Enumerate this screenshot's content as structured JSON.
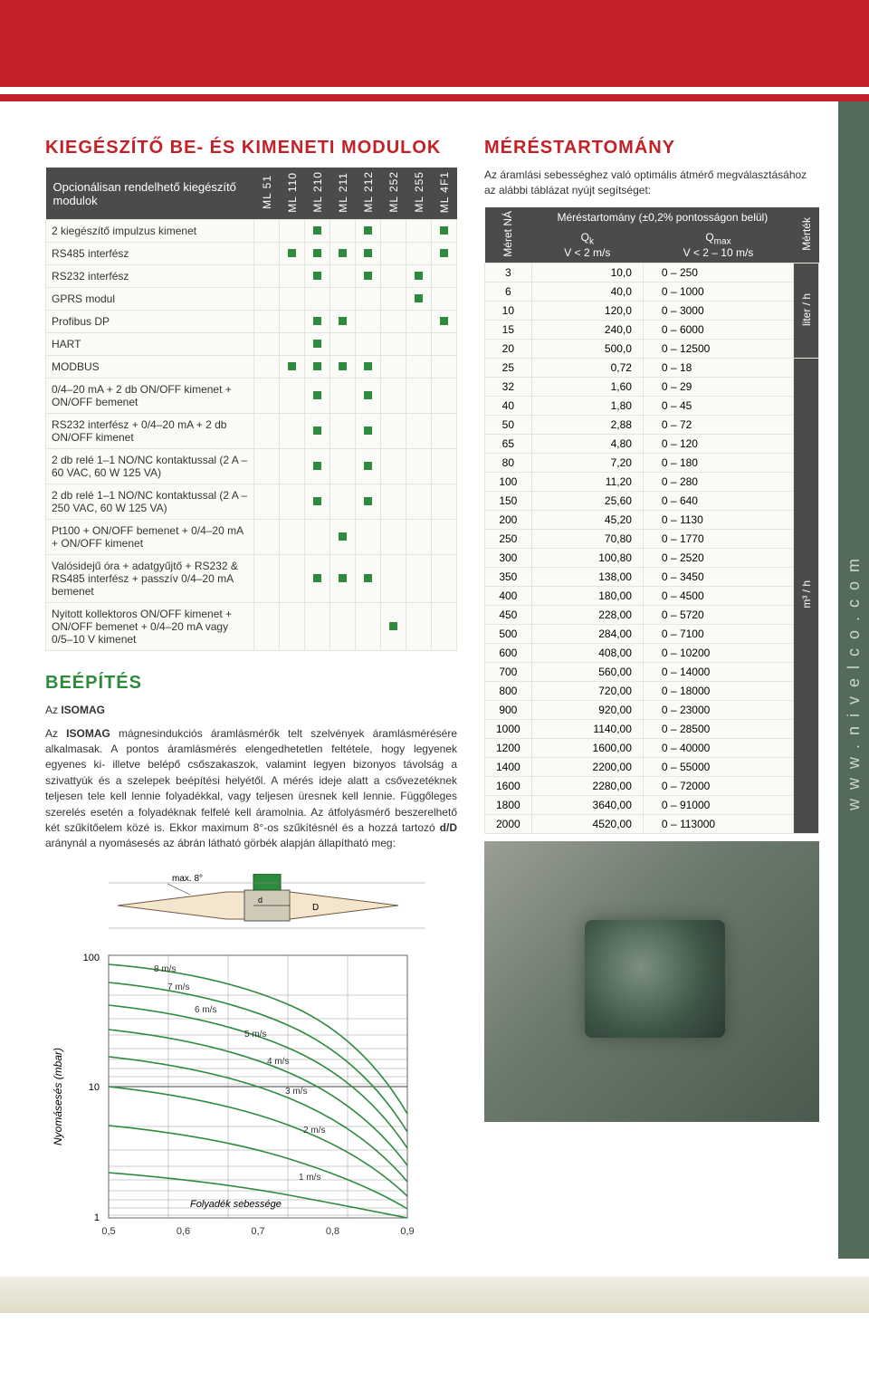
{
  "left_title": "KIEGÉSZÍTŐ BE- ÉS KIMENETI MODULOK",
  "right_title": "MÉRÉSTARTOMÁNY",
  "mod_header": "Opcionálisan rendelhető kiegészítő modulok",
  "mod_cols": [
    "ML 51",
    "ML 110",
    "ML 210",
    "ML 211",
    "ML 212",
    "ML 252",
    "ML 255",
    "ML 4F1"
  ],
  "mod_rows": [
    {
      "label": "2 kiegészítő impulzus kimenet",
      "cells": [
        0,
        0,
        1,
        0,
        1,
        0,
        0,
        1
      ]
    },
    {
      "label": "RS485 interfész",
      "cells": [
        0,
        1,
        1,
        1,
        1,
        0,
        0,
        1
      ]
    },
    {
      "label": "RS232 interfész",
      "cells": [
        0,
        0,
        1,
        0,
        1,
        0,
        1,
        0
      ]
    },
    {
      "label": "GPRS modul",
      "cells": [
        0,
        0,
        0,
        0,
        0,
        0,
        1,
        0
      ]
    },
    {
      "label": "Profibus DP",
      "cells": [
        0,
        0,
        1,
        1,
        0,
        0,
        0,
        1
      ]
    },
    {
      "label": "HART",
      "cells": [
        0,
        0,
        1,
        0,
        0,
        0,
        0,
        0
      ]
    },
    {
      "label": "MODBUS",
      "cells": [
        0,
        1,
        1,
        1,
        1,
        0,
        0,
        0
      ]
    },
    {
      "label": "0/4–20 mA + 2 db ON/OFF kimenet + ON/OFF bemenet",
      "cells": [
        0,
        0,
        1,
        0,
        1,
        0,
        0,
        0
      ]
    },
    {
      "label": "RS232 interfész + 0/4–20 mA + 2 db ON/OFF kimenet",
      "cells": [
        0,
        0,
        1,
        0,
        1,
        0,
        0,
        0
      ]
    },
    {
      "label": "2 db relé 1–1 NO/NC kontaktussal (2 A – 60 VAC, 60 W 125 VA)",
      "cells": [
        0,
        0,
        1,
        0,
        1,
        0,
        0,
        0
      ]
    },
    {
      "label": "2 db relé 1–1 NO/NC kontaktussal (2 A – 250 VAC, 60 W 125 VA)",
      "cells": [
        0,
        0,
        1,
        0,
        1,
        0,
        0,
        0
      ]
    },
    {
      "label": "Pt100 + ON/OFF bemenet + 0/4–20 mA + ON/OFF kimenet",
      "cells": [
        0,
        0,
        0,
        1,
        0,
        0,
        0,
        0
      ]
    },
    {
      "label": "Valósidejű óra + adatgyűjtő + RS232 & RS485 interfész + passzív 0/4–20 mA bemenet",
      "cells": [
        0,
        0,
        1,
        1,
        1,
        0,
        0,
        0
      ]
    },
    {
      "label": "Nyitott kollektoros ON/OFF kimenet + ON/OFF bemenet + 0/4–20 mA vagy 0/5–10 V kimenet",
      "cells": [
        0,
        0,
        0,
        0,
        0,
        1,
        0,
        0
      ]
    }
  ],
  "beepites_title": "BEÉPÍTÉS",
  "beepites_lead": "Az ISOMAG mágnesindukciós áramlásmérők telt szelvények áramlásmérésére alkalmasak. A pontos áramlásmérés elengedhetetlen feltétele, hogy legyenek egyenes ki- illetve belépő csőszakaszok, valamint legyen bizonyos távolság a szivattyúk és a szelepek beépítési helyétől. A mérés ideje alatt a csővezetéknek teljesen tele kell lennie folyadékkal, vagy teljesen üresnek kell lennie. Függőleges szerelés esetén a folyadéknak felfelé kell áramolnia. Az átfolyásmérő beszerelhető két szűkítőelem közé is. Ekkor maximum 8°-os szűkítésnél és a hozzá tartozó d/D aránynál a nyomásesés az ábrán látható görbék alapján állapítható meg:",
  "meres_intro": "Az áramlási sebességhez való optimális átmérő megválasztásához az alábbi táblázat nyújt segítséget:",
  "meres_head1": "Méret NÁ",
  "meres_head2": "Méréstartomány (±0,2% pontosságon belül)",
  "meres_sub1": "Qk\nV < 2 m/s",
  "meres_sub2": "Qmax\nV < 2 – 10 m/s",
  "meres_unit_head": "Mérték",
  "meres_rows": [
    {
      "size": "3",
      "qk": "10,0",
      "range": "0 – 250",
      "unit": "liter / h"
    },
    {
      "size": "6",
      "qk": "40,0",
      "range": "0 – 1000",
      "unit": "liter / h"
    },
    {
      "size": "10",
      "qk": "120,0",
      "range": "0 – 3000",
      "unit": "liter / h"
    },
    {
      "size": "15",
      "qk": "240,0",
      "range": "0 – 6000",
      "unit": "liter / h"
    },
    {
      "size": "20",
      "qk": "500,0",
      "range": "0 – 12500",
      "unit": "liter / h"
    },
    {
      "size": "25",
      "qk": "0,72",
      "range": "0 – 18",
      "unit": "m³ / h"
    },
    {
      "size": "32",
      "qk": "1,60",
      "range": "0 – 29",
      "unit": "m³ / h"
    },
    {
      "size": "40",
      "qk": "1,80",
      "range": "0 – 45",
      "unit": "m³ / h"
    },
    {
      "size": "50",
      "qk": "2,88",
      "range": "0 – 72",
      "unit": "m³ / h"
    },
    {
      "size": "65",
      "qk": "4,80",
      "range": "0 – 120",
      "unit": "m³ / h"
    },
    {
      "size": "80",
      "qk": "7,20",
      "range": "0 – 180",
      "unit": "m³ / h"
    },
    {
      "size": "100",
      "qk": "11,20",
      "range": "0 – 280",
      "unit": "m³ / h"
    },
    {
      "size": "150",
      "qk": "25,60",
      "range": "0 – 640",
      "unit": "m³ / h"
    },
    {
      "size": "200",
      "qk": "45,20",
      "range": "0 – 1130",
      "unit": "m³ / h"
    },
    {
      "size": "250",
      "qk": "70,80",
      "range": "0 – 1770",
      "unit": "m³ / h"
    },
    {
      "size": "300",
      "qk": "100,80",
      "range": "0 – 2520",
      "unit": "m³ / h"
    },
    {
      "size": "350",
      "qk": "138,00",
      "range": "0 – 3450",
      "unit": "m³ / h"
    },
    {
      "size": "400",
      "qk": "180,00",
      "range": "0 – 4500",
      "unit": "m³ / h"
    },
    {
      "size": "450",
      "qk": "228,00",
      "range": "0 – 5720",
      "unit": "m³ / h"
    },
    {
      "size": "500",
      "qk": "284,00",
      "range": "0 – 7100",
      "unit": "m³ / h"
    },
    {
      "size": "600",
      "qk": "408,00",
      "range": "0 – 10200",
      "unit": "m³ / h"
    },
    {
      "size": "700",
      "qk": "560,00",
      "range": "0 – 14000",
      "unit": "m³ / h"
    },
    {
      "size": "800",
      "qk": "720,00",
      "range": "0 – 18000",
      "unit": "m³ / h"
    },
    {
      "size": "900",
      "qk": "920,00",
      "range": "0 – 23000",
      "unit": "m³ / h"
    },
    {
      "size": "1000",
      "qk": "1140,00",
      "range": "0 – 28500",
      "unit": "m³ / h"
    },
    {
      "size": "1200",
      "qk": "1600,00",
      "range": "0 – 40000",
      "unit": "m³ / h"
    },
    {
      "size": "1400",
      "qk": "2200,00",
      "range": "0 – 55000",
      "unit": "m³ / h"
    },
    {
      "size": "1600",
      "qk": "2280,00",
      "range": "0 – 72000",
      "unit": "m³ / h"
    },
    {
      "size": "1800",
      "qk": "3640,00",
      "range": "0 – 91000",
      "unit": "m³ / h"
    },
    {
      "size": "2000",
      "qk": "4520,00",
      "range": "0 – 113000",
      "unit": "m³ / h"
    }
  ],
  "chart": {
    "y_label": "Nyomásesés (mbar)",
    "x_label": "Folyadék sebessége",
    "y_ticks": [
      "100",
      "10",
      "1"
    ],
    "x_ticks": [
      "0,5",
      "0,6",
      "0,7",
      "0,8",
      "0,9"
    ],
    "curve_labels": [
      "8 m/s",
      "7 m/s",
      "6 m/s",
      "5 m/s",
      "4 m/s",
      "3 m/s",
      "2 m/s",
      "1 m/s"
    ],
    "diagram_note": "max. 8°",
    "diagram_d": "d",
    "diagram_D": "D",
    "colors": {
      "grid": "#888888",
      "curve": "#2e8b3d",
      "pipe": "#b07a45",
      "hatch": "#8a8578"
    }
  },
  "side_url": "www.nivelco.com"
}
